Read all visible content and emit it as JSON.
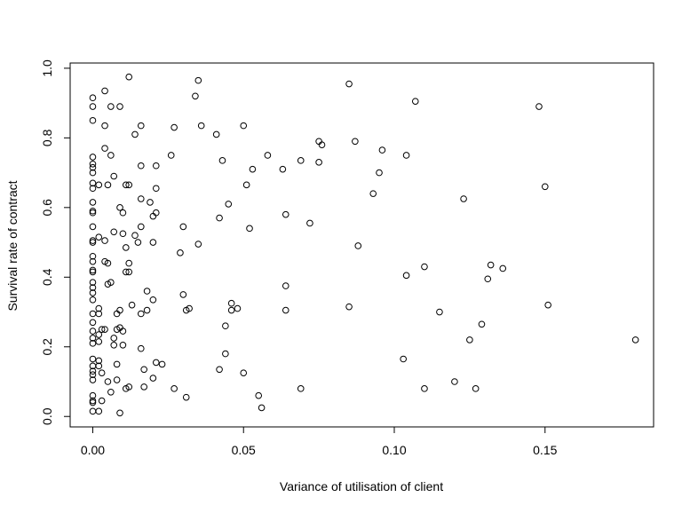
{
  "chart_data": {
    "type": "scatter",
    "title": "",
    "xlabel": "Variance of utilisation of client",
    "ylabel": "Survival rate of contract",
    "xlim": [
      -0.0075,
      0.186
    ],
    "ylim": [
      -0.03,
      1.015
    ],
    "x_ticks": [
      0.0,
      0.05,
      0.1,
      0.15
    ],
    "x_tick_labels": [
      "0.00",
      "0.05",
      "0.10",
      "0.15"
    ],
    "y_ticks": [
      0.0,
      0.2,
      0.4,
      0.6,
      0.8,
      1.0
    ],
    "y_tick_labels": [
      "0.0",
      "0.2",
      "0.4",
      "0.6",
      "0.8",
      "1.0"
    ],
    "grid": false,
    "marker": "open-circle",
    "points": [
      [
        0.0,
        0.915
      ],
      [
        0.0,
        0.89
      ],
      [
        0.0,
        0.85
      ],
      [
        0.0,
        0.745
      ],
      [
        0.0,
        0.725
      ],
      [
        0.0,
        0.715
      ],
      [
        0.0,
        0.7
      ],
      [
        0.0,
        0.67
      ],
      [
        0.0,
        0.655
      ],
      [
        0.0,
        0.615
      ],
      [
        0.0,
        0.59
      ],
      [
        0.0,
        0.585
      ],
      [
        0.0,
        0.545
      ],
      [
        0.0,
        0.505
      ],
      [
        0.0,
        0.5
      ],
      [
        0.0,
        0.46
      ],
      [
        0.0,
        0.445
      ],
      [
        0.0,
        0.42
      ],
      [
        0.0,
        0.415
      ],
      [
        0.0,
        0.385
      ],
      [
        0.0,
        0.37
      ],
      [
        0.0,
        0.355
      ],
      [
        0.0,
        0.335
      ],
      [
        0.0,
        0.295
      ],
      [
        0.0,
        0.27
      ],
      [
        0.0,
        0.245
      ],
      [
        0.0,
        0.225
      ],
      [
        0.0,
        0.21
      ],
      [
        0.0,
        0.165
      ],
      [
        0.0,
        0.145
      ],
      [
        0.0,
        0.13
      ],
      [
        0.0,
        0.12
      ],
      [
        0.0,
        0.105
      ],
      [
        0.0,
        0.06
      ],
      [
        0.0,
        0.045
      ],
      [
        0.0,
        0.04
      ],
      [
        0.0,
        0.015
      ],
      [
        0.002,
        0.665
      ],
      [
        0.002,
        0.515
      ],
      [
        0.002,
        0.31
      ],
      [
        0.002,
        0.295
      ],
      [
        0.002,
        0.235
      ],
      [
        0.002,
        0.215
      ],
      [
        0.002,
        0.16
      ],
      [
        0.002,
        0.145
      ],
      [
        0.002,
        0.015
      ],
      [
        0.003,
        0.25
      ],
      [
        0.003,
        0.125
      ],
      [
        0.003,
        0.045
      ],
      [
        0.004,
        0.935
      ],
      [
        0.004,
        0.835
      ],
      [
        0.004,
        0.77
      ],
      [
        0.004,
        0.505
      ],
      [
        0.004,
        0.445
      ],
      [
        0.004,
        0.25
      ],
      [
        0.005,
        0.665
      ],
      [
        0.005,
        0.44
      ],
      [
        0.005,
        0.38
      ],
      [
        0.005,
        0.1
      ],
      [
        0.006,
        0.89
      ],
      [
        0.006,
        0.75
      ],
      [
        0.006,
        0.385
      ],
      [
        0.006,
        0.07
      ],
      [
        0.007,
        0.69
      ],
      [
        0.007,
        0.53
      ],
      [
        0.007,
        0.225
      ],
      [
        0.007,
        0.205
      ],
      [
        0.008,
        0.295
      ],
      [
        0.008,
        0.25
      ],
      [
        0.008,
        0.15
      ],
      [
        0.008,
        0.105
      ],
      [
        0.009,
        0.89
      ],
      [
        0.009,
        0.6
      ],
      [
        0.009,
        0.305
      ],
      [
        0.009,
        0.255
      ],
      [
        0.009,
        0.01
      ],
      [
        0.01,
        0.585
      ],
      [
        0.01,
        0.525
      ],
      [
        0.01,
        0.245
      ],
      [
        0.01,
        0.205
      ],
      [
        0.011,
        0.665
      ],
      [
        0.011,
        0.485
      ],
      [
        0.011,
        0.415
      ],
      [
        0.011,
        0.08
      ],
      [
        0.012,
        0.975
      ],
      [
        0.012,
        0.665
      ],
      [
        0.012,
        0.44
      ],
      [
        0.012,
        0.415
      ],
      [
        0.012,
        0.085
      ],
      [
        0.013,
        0.32
      ],
      [
        0.014,
        0.81
      ],
      [
        0.014,
        0.52
      ],
      [
        0.015,
        0.5
      ],
      [
        0.016,
        0.835
      ],
      [
        0.016,
        0.72
      ],
      [
        0.016,
        0.625
      ],
      [
        0.016,
        0.545
      ],
      [
        0.016,
        0.295
      ],
      [
        0.016,
        0.195
      ],
      [
        0.017,
        0.135
      ],
      [
        0.017,
        0.085
      ],
      [
        0.018,
        0.36
      ],
      [
        0.018,
        0.305
      ],
      [
        0.019,
        0.615
      ],
      [
        0.02,
        0.575
      ],
      [
        0.02,
        0.5
      ],
      [
        0.02,
        0.335
      ],
      [
        0.02,
        0.11
      ],
      [
        0.021,
        0.72
      ],
      [
        0.021,
        0.655
      ],
      [
        0.021,
        0.585
      ],
      [
        0.021,
        0.155
      ],
      [
        0.023,
        0.15
      ],
      [
        0.026,
        0.75
      ],
      [
        0.027,
        0.83
      ],
      [
        0.027,
        0.08
      ],
      [
        0.029,
        0.47
      ],
      [
        0.03,
        0.545
      ],
      [
        0.03,
        0.35
      ],
      [
        0.031,
        0.305
      ],
      [
        0.031,
        0.055
      ],
      [
        0.032,
        0.31
      ],
      [
        0.034,
        0.92
      ],
      [
        0.035,
        0.965
      ],
      [
        0.035,
        0.495
      ],
      [
        0.036,
        0.835
      ],
      [
        0.041,
        0.81
      ],
      [
        0.042,
        0.57
      ],
      [
        0.042,
        0.135
      ],
      [
        0.043,
        0.735
      ],
      [
        0.044,
        0.26
      ],
      [
        0.044,
        0.18
      ],
      [
        0.045,
        0.61
      ],
      [
        0.046,
        0.325
      ],
      [
        0.046,
        0.305
      ],
      [
        0.048,
        0.31
      ],
      [
        0.05,
        0.835
      ],
      [
        0.05,
        0.125
      ],
      [
        0.051,
        0.665
      ],
      [
        0.052,
        0.54
      ],
      [
        0.053,
        0.71
      ],
      [
        0.055,
        0.06
      ],
      [
        0.056,
        0.025
      ],
      [
        0.058,
        0.75
      ],
      [
        0.063,
        0.71
      ],
      [
        0.064,
        0.58
      ],
      [
        0.064,
        0.375
      ],
      [
        0.064,
        0.305
      ],
      [
        0.069,
        0.735
      ],
      [
        0.069,
        0.08
      ],
      [
        0.072,
        0.555
      ],
      [
        0.075,
        0.79
      ],
      [
        0.075,
        0.73
      ],
      [
        0.076,
        0.78
      ],
      [
        0.085,
        0.955
      ],
      [
        0.085,
        0.315
      ],
      [
        0.087,
        0.79
      ],
      [
        0.088,
        0.49
      ],
      [
        0.093,
        0.64
      ],
      [
        0.095,
        0.7
      ],
      [
        0.096,
        0.765
      ],
      [
        0.103,
        0.165
      ],
      [
        0.104,
        0.75
      ],
      [
        0.104,
        0.405
      ],
      [
        0.107,
        0.905
      ],
      [
        0.11,
        0.43
      ],
      [
        0.11,
        0.08
      ],
      [
        0.115,
        0.3
      ],
      [
        0.12,
        0.1
      ],
      [
        0.123,
        0.625
      ],
      [
        0.125,
        0.22
      ],
      [
        0.127,
        0.08
      ],
      [
        0.129,
        0.265
      ],
      [
        0.131,
        0.395
      ],
      [
        0.132,
        0.435
      ],
      [
        0.136,
        0.425
      ],
      [
        0.148,
        0.89
      ],
      [
        0.15,
        0.66
      ],
      [
        0.151,
        0.32
      ],
      [
        0.18,
        0.22
      ]
    ]
  }
}
